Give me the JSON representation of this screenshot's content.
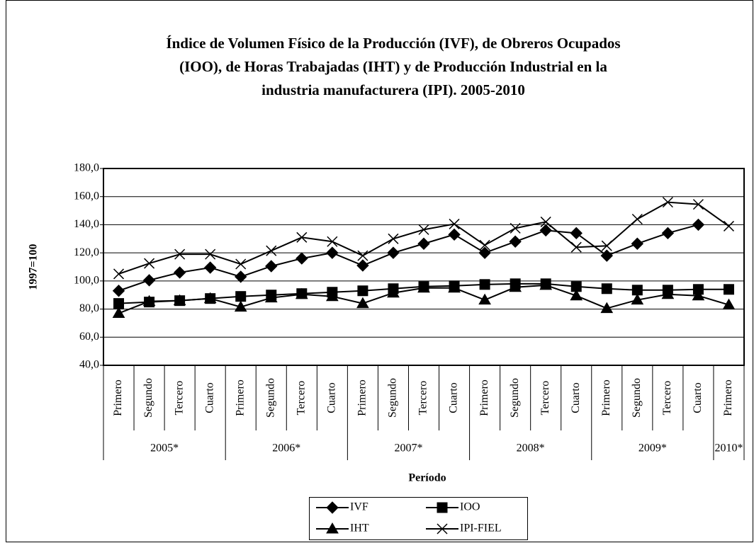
{
  "chart_data": {
    "type": "line",
    "title": [
      "Índice de Volumen Físico de la Producción (IVF), de Obreros Ocupados",
      "(IOO), de Horas Trabajadas (IHT) y de Producción Industrial en la",
      "industria manufacturera (IPI). 2005-2010"
    ],
    "y_label": "1997=100",
    "x_label": "Período",
    "categories": [
      "Primero",
      "Segundo",
      "Tercero",
      "Cuarto",
      "Primero",
      "Segundo",
      "Tercero",
      "Cuarto",
      "Primero",
      "Segundo",
      "Tercero",
      "Cuarto",
      "Primero",
      "Segundo",
      "Tercero",
      "Cuarto",
      "Primero",
      "Segundo",
      "Tercero",
      "Cuarto",
      "Primero"
    ],
    "years": [
      "2005*",
      "2006*",
      "2007*",
      "2008*",
      "2009*",
      "2010*"
    ],
    "ylim": [
      40,
      180
    ],
    "yticks": [
      {
        "value": 40,
        "label": "40,0"
      },
      {
        "value": 60,
        "label": "60,0"
      },
      {
        "value": 80,
        "label": "80,0"
      },
      {
        "value": 100,
        "label": "100,0"
      },
      {
        "value": 120,
        "label": "120,0"
      },
      {
        "value": 140,
        "label": "140,0"
      },
      {
        "value": 160,
        "label": "160,0"
      },
      {
        "value": 180,
        "label": "180,0"
      }
    ],
    "grid": true,
    "series": [
      {
        "name": "IVF",
        "color": "#000000",
        "marker": "diamond",
        "values": [
          93,
          100.5,
          106,
          109.5,
          103,
          110.5,
          116,
          120,
          111,
          120,
          126.5,
          133,
          120,
          128,
          136,
          134,
          118,
          126.5,
          134,
          140,
          null
        ]
      },
      {
        "name": "IOO",
        "color": "#000000",
        "marker": "square",
        "values": [
          84,
          85,
          86,
          87.5,
          89,
          90,
          91,
          92,
          93,
          94.5,
          96,
          96.5,
          97.5,
          98,
          98,
          96,
          94.5,
          93.5,
          93.5,
          94,
          94
        ]
      },
      {
        "name": "IHT",
        "color": "#000000",
        "marker": "triangle",
        "values": [
          77,
          85.5,
          86,
          87.5,
          81.5,
          88,
          90.5,
          89,
          84,
          91.5,
          95,
          95,
          86.5,
          95.5,
          97,
          89.5,
          80.5,
          86.5,
          90.5,
          89.5,
          83
        ]
      },
      {
        "name": "IPI-FIEL",
        "color": "#000000",
        "marker": "x",
        "values": [
          105,
          112.5,
          119,
          119,
          112,
          121.5,
          131,
          128,
          118,
          130,
          136.5,
          140.5,
          125.5,
          137.5,
          142,
          124,
          125,
          144,
          156,
          154.5,
          139
        ]
      }
    ]
  }
}
